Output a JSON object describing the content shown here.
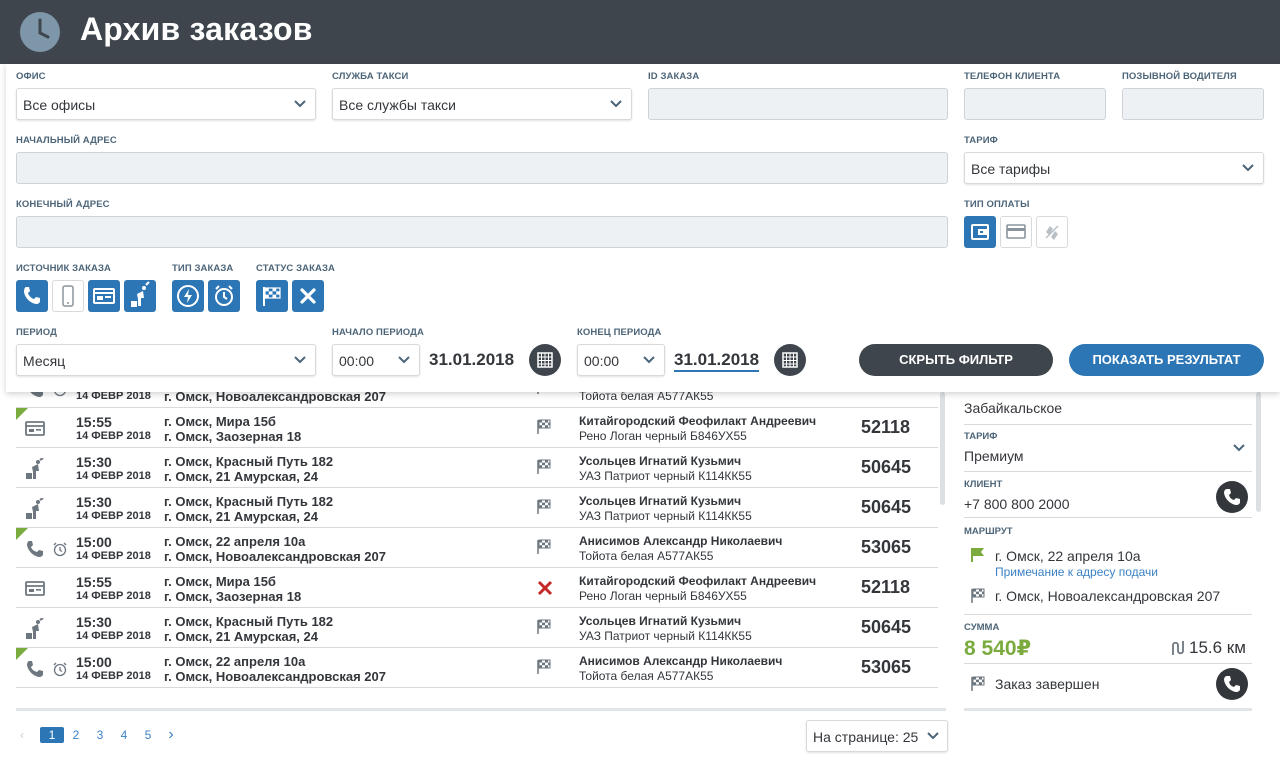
{
  "header": {
    "title": "Архив заказов",
    "logo_icon": "clock-icon"
  },
  "filter": {
    "office": {
      "label": "ОФИС",
      "value": "Все офисы"
    },
    "service": {
      "label": "СЛУЖБА ТАКСИ",
      "value": "Все службы такси"
    },
    "order_id": {
      "label": "ID ЗАКАЗА",
      "value": ""
    },
    "client_phone": {
      "label": "ТЕЛЕФОН КЛИЕНТА",
      "value": ""
    },
    "driver_callsign": {
      "label": "ПОЗЫВНОЙ ВОДИТЕЛЯ",
      "value": ""
    },
    "start_address": {
      "label": "НАЧАЛЬНЫЙ АДРЕС",
      "value": ""
    },
    "tariff": {
      "label": "ТАРИФ",
      "value": "Все тарифы"
    },
    "end_address": {
      "label": "КОНЕЧНЫЙ АДРЕС",
      "value": ""
    },
    "payment_type": {
      "label": "ТИП ОПЛАТЫ",
      "icons": [
        "wallet-icon",
        "card-icon",
        "bonus-icon"
      ]
    },
    "order_source": {
      "label": "ИСТОЧНИК ЗАКАЗА",
      "icons": [
        "phone-icon",
        "mobile-icon",
        "terminal-icon",
        "street-hail-icon"
      ]
    },
    "order_type": {
      "label": "ТИП ЗАКАЗА",
      "icons": [
        "urgent-icon",
        "alarm-clock-icon"
      ]
    },
    "order_status": {
      "label": "СТАТУС ЗАКАЗА",
      "icons": [
        "finish-flag-icon",
        "cancel-icon"
      ]
    },
    "period": {
      "label": "ПЕРИОД",
      "value": "Месяц"
    },
    "period_start": {
      "label": "НАЧАЛО ПЕРИОДА",
      "time": "00:00",
      "date": "31.01.2018"
    },
    "period_end": {
      "label": "КОНЕЦ ПЕРИОДА",
      "time": "00:00",
      "date": "31.01.2018"
    },
    "hide_button": "СКРЫТЬ ФИЛЬТР",
    "show_button": "ПОКАЗАТЬ РЕЗУЛЬТАТ"
  },
  "orders": [
    {
      "time": "",
      "date": "14 ФЕВР 2018",
      "addr_from": "",
      "addr_to": "г. Омск, Новоалександровская 207",
      "driver": "",
      "car": "Тойота белая А577АК55",
      "id": "",
      "source": "phone",
      "status": "finish",
      "urgent": true,
      "partial": true
    },
    {
      "time": "15:55",
      "date": "14 ФЕВР 2018",
      "addr_from": "г. Омск, Мира 15б",
      "addr_to": "г. Омск, Заозерная 18",
      "driver": "Китайгородский Феофилакт Андреевич",
      "car": "Рено Логан черный Б846УХ55",
      "id": "52118",
      "source": "terminal",
      "status": "finish",
      "urgent": true
    },
    {
      "time": "15:30",
      "date": "14 ФЕВР 2018",
      "addr_from": "г. Омск, Красный Путь 182",
      "addr_to": "г. Омск, 21 Амурская, 24",
      "driver": "Усольцев Игнатий Кузьмич",
      "car": "УАЗ Патриот черный К114КК55",
      "id": "50645",
      "source": "hail",
      "status": "finish",
      "urgent": false
    },
    {
      "time": "15:30",
      "date": "14 ФЕВР 2018",
      "addr_from": "г. Омск, Красный Путь 182",
      "addr_to": "г. Омск, 21 Амурская, 24",
      "driver": "Усольцев Игнатий Кузьмич",
      "car": "УАЗ Патриот черный К114КК55",
      "id": "50645",
      "source": "hail",
      "status": "finish",
      "urgent": false
    },
    {
      "time": "15:00",
      "date": "14 ФЕВР 2018",
      "addr_from": "г. Омск, 22 апреля 10а",
      "addr_to": "г. Омск, Новоалександровская 207",
      "driver": "Анисимов Александр Николаевич",
      "car": "Тойота белая А577АК55",
      "id": "53065",
      "source": "phone-alarm",
      "status": "finish",
      "urgent": true
    },
    {
      "time": "15:55",
      "date": "14 ФЕВР 2018",
      "addr_from": "г. Омск, Мира 15б",
      "addr_to": "г. Омск, Заозерная 18",
      "driver": "Китайгородский Феофилакт Андреевич",
      "car": "Рено Логан черный Б846УХ55",
      "id": "52118",
      "source": "terminal",
      "status": "cancel",
      "urgent": false
    },
    {
      "time": "15:30",
      "date": "14 ФЕВР 2018",
      "addr_from": "г. Омск, Красный Путь 182",
      "addr_to": "г. Омск, 21 Амурская, 24",
      "driver": "Усольцев Игнатий Кузьмич",
      "car": "УАЗ Патриот черный К114КК55",
      "id": "50645",
      "source": "hail",
      "status": "finish",
      "urgent": false
    },
    {
      "time": "15:00",
      "date": "14 ФЕВР 2018",
      "addr_from": "г. Омск, 22 апреля 10а",
      "addr_to": "г. Омск, Новоалександровская 207",
      "driver": "Анисимов Александр Николаевич",
      "car": "Тойота белая А577АК55",
      "id": "53065",
      "source": "phone-alarm",
      "status": "finish",
      "urgent": true
    }
  ],
  "pagination": {
    "pages": [
      "1",
      "2",
      "3",
      "4",
      "5"
    ],
    "current": "1",
    "per_page": "На странице: 25"
  },
  "detail": {
    "district": "Забайкальское",
    "tariff_label": "ТАРИФ",
    "tariff": "Премиум",
    "client_label": "КЛИЕНТ",
    "client_phone": "+7 800 800 2000",
    "route_label": "МАРШРУТ",
    "route_from": "г. Омск, 22 апреля 10а",
    "route_note": "Примечание к адресу подачи",
    "route_to": "г. Омск, Новоалександровская 207",
    "sum_label": "СУММА",
    "sum": "8 540₽",
    "distance": "15.6 км",
    "status": "Заказ завершен"
  },
  "colors": {
    "header": "#3f454c",
    "accent": "#2d76b6",
    "green": "#7bab3f",
    "cancel": "#c62828"
  }
}
